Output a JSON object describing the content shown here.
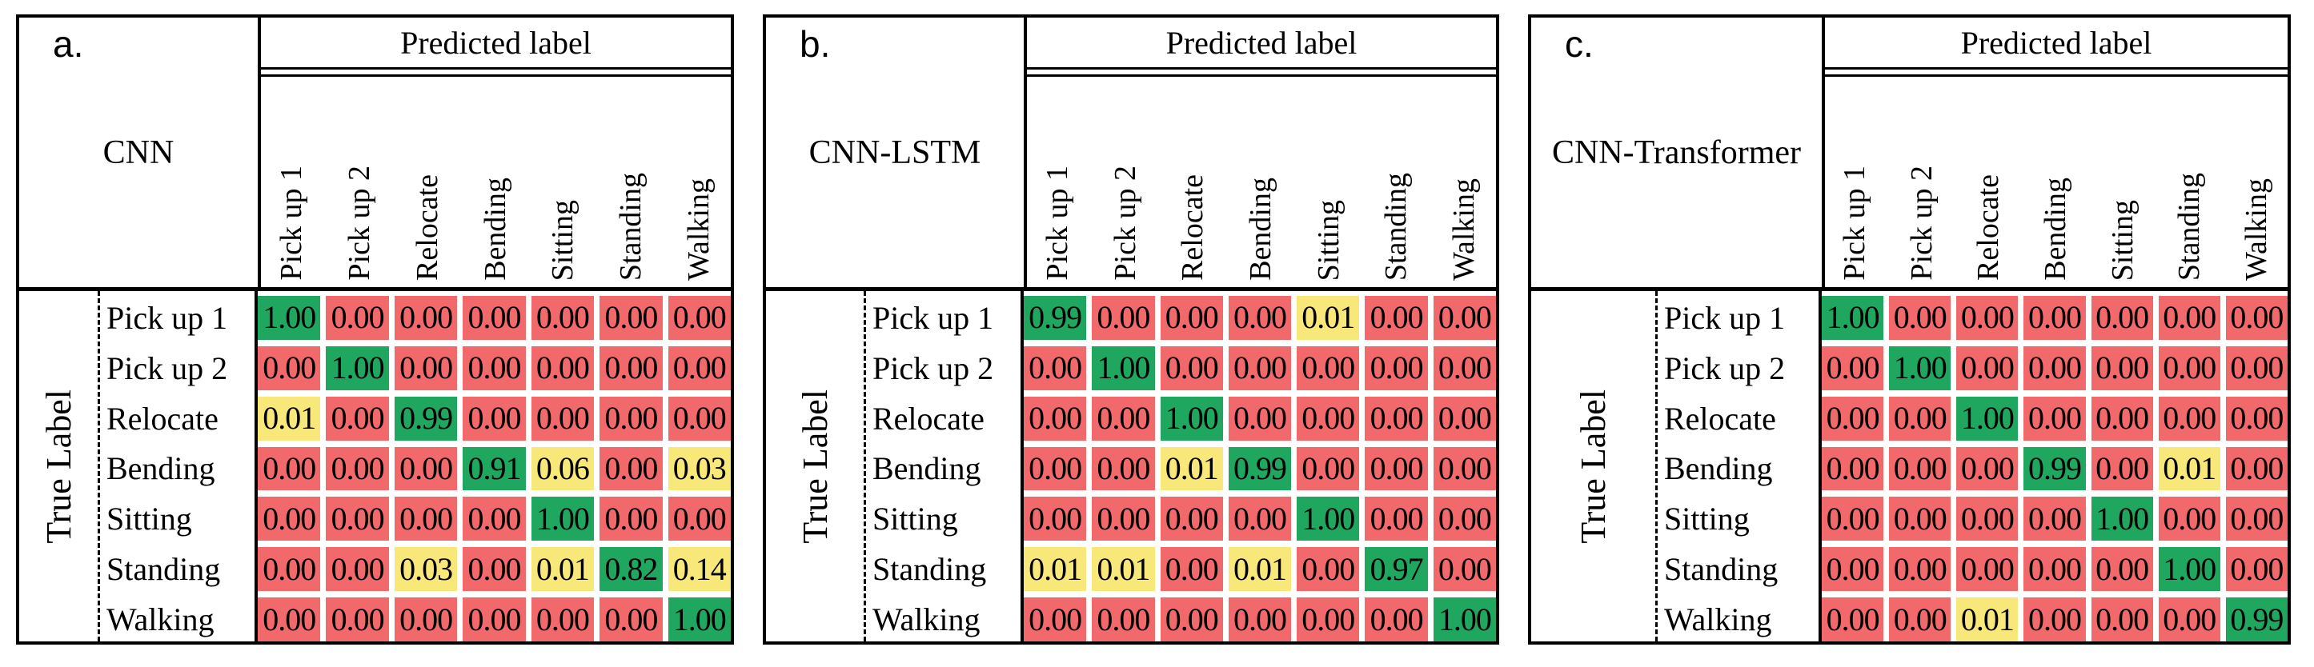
{
  "figure": {
    "predicted_axis_label": "Predicted label",
    "true_axis_label": "True Label",
    "class_labels": [
      "Pick up 1",
      "Pick up 2",
      "Relocate",
      "Bending",
      "Sitting",
      "Standing",
      "Walking"
    ],
    "panels": [
      {
        "tag": "a.",
        "model": "CNN"
      },
      {
        "tag": "b.",
        "model": "CNN-LSTM"
      },
      {
        "tag": "c.",
        "model": "CNN-Transformer"
      }
    ],
    "colors": {
      "high_cell": "#1FA75F",
      "mid_cell": "#F8E87A",
      "low_cell": "#F2696B",
      "border": "#000000"
    },
    "color_rule": {
      "high_min": 0.8,
      "mid_min": 0.01
    },
    "value_decimals": 2
  },
  "chart_data": [
    {
      "type": "heatmap",
      "title": "CNN",
      "xlabel": "Predicted label",
      "ylabel": "True Label",
      "x_labels": [
        "Pick up 1",
        "Pick up 2",
        "Relocate",
        "Bending",
        "Sitting",
        "Standing",
        "Walking"
      ],
      "y_labels": [
        "Pick up 1",
        "Pick up 2",
        "Relocate",
        "Bending",
        "Sitting",
        "Standing",
        "Walking"
      ],
      "values": [
        [
          1.0,
          0.0,
          0.0,
          0.0,
          0.0,
          0.0,
          0.0
        ],
        [
          0.0,
          1.0,
          0.0,
          0.0,
          0.0,
          0.0,
          0.0
        ],
        [
          0.01,
          0.0,
          0.99,
          0.0,
          0.0,
          0.0,
          0.0
        ],
        [
          0.0,
          0.0,
          0.0,
          0.91,
          0.06,
          0.0,
          0.03
        ],
        [
          0.0,
          0.0,
          0.0,
          0.0,
          1.0,
          0.0,
          0.0
        ],
        [
          0.0,
          0.0,
          0.03,
          0.0,
          0.01,
          0.82,
          0.14
        ],
        [
          0.0,
          0.0,
          0.0,
          0.0,
          0.0,
          0.0,
          1.0
        ]
      ]
    },
    {
      "type": "heatmap",
      "title": "CNN-LSTM",
      "xlabel": "Predicted label",
      "ylabel": "True Label",
      "x_labels": [
        "Pick up 1",
        "Pick up 2",
        "Relocate",
        "Bending",
        "Sitting",
        "Standing",
        "Walking"
      ],
      "y_labels": [
        "Pick up 1",
        "Pick up 2",
        "Relocate",
        "Bending",
        "Sitting",
        "Standing",
        "Walking"
      ],
      "values": [
        [
          0.99,
          0.0,
          0.0,
          0.0,
          0.01,
          0.0,
          0.0
        ],
        [
          0.0,
          1.0,
          0.0,
          0.0,
          0.0,
          0.0,
          0.0
        ],
        [
          0.0,
          0.0,
          1.0,
          0.0,
          0.0,
          0.0,
          0.0
        ],
        [
          0.0,
          0.0,
          0.01,
          0.99,
          0.0,
          0.0,
          0.0
        ],
        [
          0.0,
          0.0,
          0.0,
          0.0,
          1.0,
          0.0,
          0.0
        ],
        [
          0.01,
          0.01,
          0.0,
          0.01,
          0.0,
          0.97,
          0.0
        ],
        [
          0.0,
          0.0,
          0.0,
          0.0,
          0.0,
          0.0,
          1.0
        ]
      ]
    },
    {
      "type": "heatmap",
      "title": "CNN-Transformer",
      "xlabel": "Predicted label",
      "ylabel": "True Label",
      "x_labels": [
        "Pick up 1",
        "Pick up 2",
        "Relocate",
        "Bending",
        "Sitting",
        "Standing",
        "Walking"
      ],
      "y_labels": [
        "Pick up 1",
        "Pick up 2",
        "Relocate",
        "Bending",
        "Sitting",
        "Standing",
        "Walking"
      ],
      "values": [
        [
          1.0,
          0.0,
          0.0,
          0.0,
          0.0,
          0.0,
          0.0
        ],
        [
          0.0,
          1.0,
          0.0,
          0.0,
          0.0,
          0.0,
          0.0
        ],
        [
          0.0,
          0.0,
          1.0,
          0.0,
          0.0,
          0.0,
          0.0
        ],
        [
          0.0,
          0.0,
          0.0,
          0.99,
          0.0,
          0.01,
          0.0
        ],
        [
          0.0,
          0.0,
          0.0,
          0.0,
          1.0,
          0.0,
          0.0
        ],
        [
          0.0,
          0.0,
          0.0,
          0.0,
          0.0,
          1.0,
          0.0
        ],
        [
          0.0,
          0.0,
          0.01,
          0.0,
          0.0,
          0.0,
          0.99
        ]
      ]
    }
  ]
}
